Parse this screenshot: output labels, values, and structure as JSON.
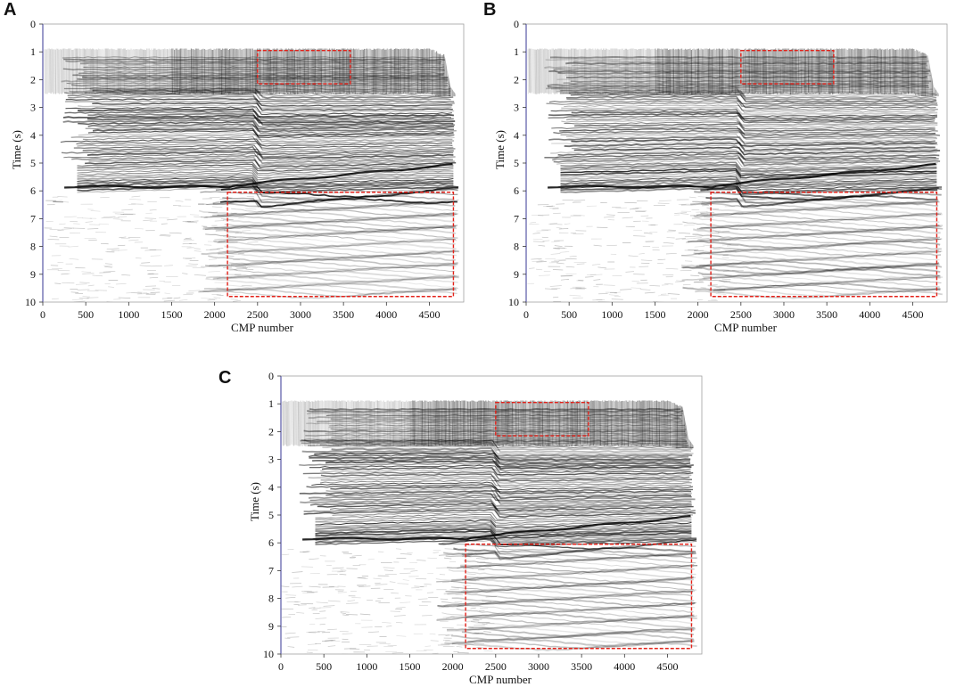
{
  "figure": {
    "panels": [
      {
        "letter": "A",
        "xlabel": "CMP number",
        "ylabel": "Time (s)",
        "xticks": [
          "0",
          "500",
          "1000",
          "1500",
          "2000",
          "2500",
          "3000",
          "3500",
          "4000",
          "4500"
        ],
        "yticks": [
          "0",
          "1",
          "2",
          "3",
          "4",
          "5",
          "6",
          "7",
          "8",
          "9",
          "10"
        ],
        "x_range": [
          0,
          4900
        ],
        "y_range": [
          0,
          10
        ],
        "highlight_boxes": [
          {
            "x": [
              2500,
              3580
            ],
            "y": [
              0.95,
              2.15
            ],
            "color": "#e32119"
          },
          {
            "x": [
              2150,
              4780
            ],
            "y": [
              6.05,
              9.8
            ],
            "color": "#e32119"
          }
        ]
      },
      {
        "letter": "B",
        "xlabel": "CMP number",
        "ylabel": "Time (s)",
        "xticks": [
          "0",
          "500",
          "1000",
          "1500",
          "2000",
          "2500",
          "3000",
          "3500",
          "4000",
          "4500"
        ],
        "yticks": [
          "0",
          "1",
          "2",
          "3",
          "4",
          "5",
          "6",
          "7",
          "8",
          "9",
          "10"
        ],
        "x_range": [
          0,
          4900
        ],
        "y_range": [
          0,
          10
        ],
        "highlight_boxes": [
          {
            "x": [
              2500,
              3580
            ],
            "y": [
              0.95,
              2.15
            ],
            "color": "#e32119"
          },
          {
            "x": [
              2150,
              4780
            ],
            "y": [
              6.05,
              9.8
            ],
            "color": "#e32119"
          }
        ]
      },
      {
        "letter": "C",
        "xlabel": "CMP number",
        "ylabel": "Time (s)",
        "xticks": [
          "0",
          "500",
          "1000",
          "1500",
          "2000",
          "2500",
          "3000",
          "3500",
          "4000",
          "4500"
        ],
        "yticks": [
          "0",
          "1",
          "2",
          "3",
          "4",
          "5",
          "6",
          "7",
          "8",
          "9",
          "10"
        ],
        "x_range": [
          0,
          4900
        ],
        "y_range": [
          0,
          10
        ],
        "highlight_boxes": [
          {
            "x": [
              2500,
              3580
            ],
            "y": [
              0.95,
              2.15
            ],
            "color": "#e32119"
          },
          {
            "x": [
              2150,
              4780
            ],
            "y": [
              6.05,
              9.8
            ],
            "color": "#e32119"
          }
        ]
      }
    ]
  }
}
